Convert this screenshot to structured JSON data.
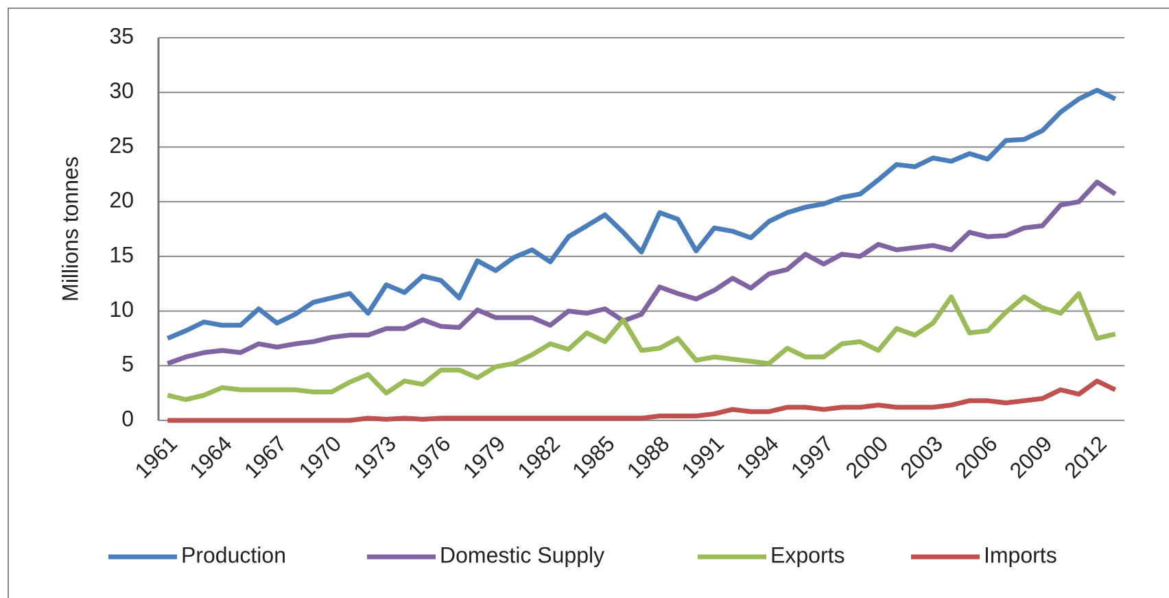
{
  "chart_data": {
    "type": "line",
    "y_label": "Millions tonnes",
    "categories": [
      "1961",
      null,
      null,
      "1964",
      null,
      null,
      "1967",
      null,
      null,
      "1970",
      null,
      null,
      "1973",
      null,
      null,
      "1976",
      null,
      null,
      "1979",
      null,
      null,
      "1982",
      null,
      null,
      "1985",
      null,
      null,
      "1988",
      null,
      null,
      "1991",
      null,
      null,
      "1994",
      null,
      null,
      "1997",
      null,
      null,
      "2000",
      null,
      null,
      "2003",
      null,
      null,
      "2006",
      null,
      null,
      "2009",
      null,
      null,
      "2012",
      null
    ],
    "series": [
      {
        "name": "Production",
        "color": "#4a7ebb",
        "values": [
          7.5,
          8.2,
          9.0,
          8.7,
          8.7,
          10.2,
          8.9,
          9.7,
          10.8,
          11.2,
          11.6,
          9.8,
          12.4,
          11.7,
          13.2,
          12.8,
          11.2,
          14.6,
          13.7,
          14.9,
          15.6,
          14.5,
          16.8,
          17.8,
          18.8,
          17.2,
          15.4,
          19.0,
          18.4,
          15.5,
          17.6,
          17.3,
          16.7,
          18.2,
          19.0,
          19.5,
          19.8,
          20.4,
          20.7,
          22.0,
          23.4,
          23.2,
          24.0,
          23.7,
          24.4,
          23.9,
          25.6,
          25.7,
          26.5,
          28.2,
          29.4,
          30.2,
          29.4
        ]
      },
      {
        "name": "Domestic Supply",
        "color": "#8064a2",
        "values": [
          5.2,
          5.8,
          6.2,
          6.4,
          6.2,
          7.0,
          6.7,
          7.0,
          7.2,
          7.6,
          7.8,
          7.8,
          8.4,
          8.4,
          9.2,
          8.6,
          8.5,
          10.1,
          9.4,
          9.4,
          9.4,
          8.7,
          10.0,
          9.8,
          10.2,
          9.1,
          9.7,
          12.2,
          11.6,
          11.1,
          11.9,
          13.0,
          12.1,
          13.4,
          13.8,
          15.2,
          14.3,
          15.2,
          15.0,
          16.1,
          15.6,
          15.8,
          16.0,
          15.6,
          17.2,
          16.8,
          16.9,
          17.6,
          17.8,
          19.7,
          20.0,
          21.8,
          20.7
        ]
      },
      {
        "name": "Exports",
        "color": "#9bbb59",
        "values": [
          2.3,
          1.9,
          2.3,
          3.0,
          2.8,
          2.8,
          2.8,
          2.8,
          2.6,
          2.6,
          3.5,
          4.2,
          2.5,
          3.6,
          3.3,
          4.6,
          4.6,
          3.9,
          4.9,
          5.2,
          6.0,
          7.0,
          6.5,
          8.0,
          7.2,
          9.2,
          6.4,
          6.6,
          7.5,
          5.5,
          5.8,
          5.6,
          5.4,
          5.2,
          6.6,
          5.8,
          5.8,
          7.0,
          7.2,
          6.4,
          8.4,
          7.8,
          8.9,
          11.3,
          8.0,
          8.2,
          9.9,
          11.3,
          10.3,
          9.8,
          11.6,
          7.5,
          7.9
        ]
      },
      {
        "name": "Imports",
        "color": "#c0504d",
        "values": [
          0,
          0,
          0,
          0,
          0,
          0,
          0,
          0,
          0,
          0,
          0,
          0.2,
          0.1,
          0.2,
          0.1,
          0.2,
          0.2,
          0.2,
          0.2,
          0.2,
          0.2,
          0.2,
          0.2,
          0.2,
          0.2,
          0.2,
          0.2,
          0.4,
          0.4,
          0.4,
          0.6,
          1.0,
          0.8,
          0.8,
          1.2,
          1.2,
          1.0,
          1.2,
          1.2,
          1.4,
          1.2,
          1.2,
          1.2,
          1.4,
          1.8,
          1.8,
          1.6,
          1.8,
          2.0,
          2.8,
          2.4,
          3.6,
          2.8
        ]
      }
    ],
    "ylim": [
      0,
      35
    ],
    "yticks": [
      0,
      5,
      10,
      15,
      20,
      25,
      30,
      35
    ],
    "grid": true,
    "legend": "bottom"
  }
}
